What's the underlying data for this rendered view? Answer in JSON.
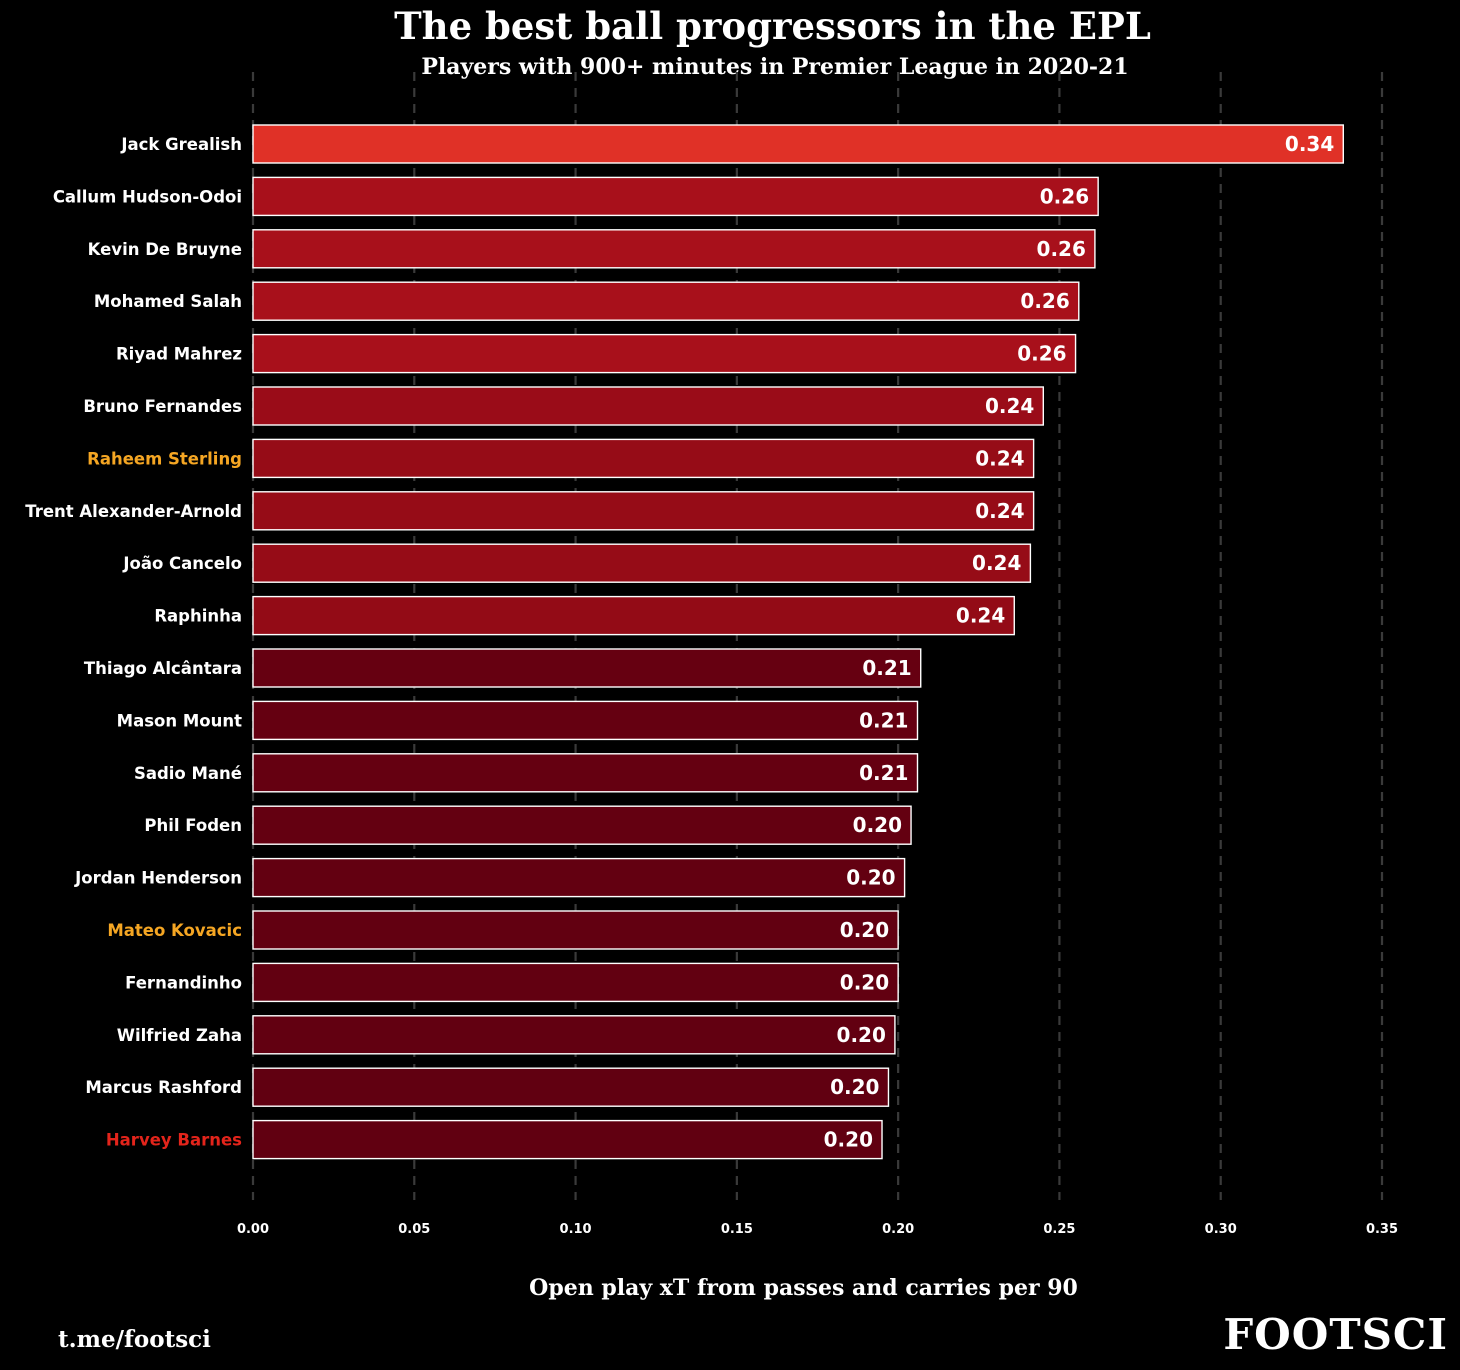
{
  "header": {
    "title": "The best ball progressors in the EPL",
    "subtitle": "Players with 900+ minutes in Premier League in 2020-21"
  },
  "footer": {
    "link": "t.me/footsci",
    "brand": "FOOTSCI"
  },
  "colors": {
    "background": "#000000",
    "label_default": "#ffffff",
    "label_orange": "#f5a623",
    "label_red": "#e3241b",
    "gridline": "#3a3a3a",
    "bar_outline": "#ffffff"
  },
  "chart_data": {
    "type": "bar",
    "orientation": "horizontal",
    "title": "The best ball progressors in the EPL",
    "subtitle": "Players with 900+ minutes in Premier League in 2020-21",
    "xlabel": "Open play xT from passes and carries per 90",
    "ylabel": "",
    "xlim": [
      0,
      0.35
    ],
    "xticks": [
      "0.00",
      "0.05",
      "0.10",
      "0.15",
      "0.20",
      "0.25",
      "0.30",
      "0.35"
    ],
    "grid": "vertical dashed",
    "categories": [
      "Jack Grealish",
      "Callum Hudson-Odoi",
      "Kevin De Bruyne",
      "Mohamed Salah",
      "Riyad Mahrez",
      "Bruno Fernandes",
      "Raheem Sterling",
      "Trent Alexander-Arnold",
      "João Cancelo",
      "Raphinha",
      "Thiago Alcântara",
      "Mason Mount",
      "Sadio Mané",
      "Phil Foden",
      "Jordan Henderson",
      "Mateo Kovacic",
      "Fernandinho",
      "Wilfried Zaha",
      "Marcus Rashford",
      "Harvey Barnes"
    ],
    "values": [
      0.338,
      0.262,
      0.261,
      0.256,
      0.255,
      0.245,
      0.242,
      0.242,
      0.241,
      0.236,
      0.207,
      0.206,
      0.206,
      0.204,
      0.202,
      0.2,
      0.2,
      0.199,
      0.197,
      0.195
    ],
    "value_labels": [
      "0.34",
      "0.26",
      "0.26",
      "0.26",
      "0.26",
      "0.24",
      "0.24",
      "0.24",
      "0.24",
      "0.24",
      "0.21",
      "0.21",
      "0.21",
      "0.20",
      "0.20",
      "0.20",
      "0.20",
      "0.20",
      "0.20",
      "0.20"
    ],
    "bar_colors": [
      "#e03127",
      "#a8101b",
      "#a8101b",
      "#a8101b",
      "#a8101b",
      "#9a0c18",
      "#960c17",
      "#960c17",
      "#960c17",
      "#930b16",
      "#660011",
      "#650011",
      "#650011",
      "#640011",
      "#630011",
      "#620011",
      "#620011",
      "#620011",
      "#610011",
      "#610011"
    ],
    "label_colors": [
      "#ffffff",
      "#ffffff",
      "#ffffff",
      "#ffffff",
      "#ffffff",
      "#ffffff",
      "#f5a623",
      "#ffffff",
      "#ffffff",
      "#ffffff",
      "#ffffff",
      "#ffffff",
      "#ffffff",
      "#ffffff",
      "#ffffff",
      "#f5a623",
      "#ffffff",
      "#ffffff",
      "#ffffff",
      "#e3241b"
    ]
  }
}
